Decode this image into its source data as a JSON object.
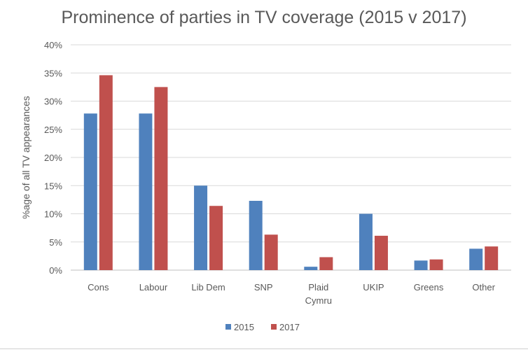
{
  "chart_data": {
    "type": "bar",
    "title": "Prominence of parties in TV coverage (2015 v 2017)",
    "ylabel": "%age of all TV appearances",
    "xlabel": "",
    "ylim": [
      0,
      40
    ],
    "yticks": [
      "0%",
      "5%",
      "10%",
      "15%",
      "20%",
      "25%",
      "30%",
      "35%",
      "40%"
    ],
    "categories": [
      [
        "Cons"
      ],
      [
        "Labour"
      ],
      [
        "Lib Dem"
      ],
      [
        "SNP"
      ],
      [
        "Plaid",
        "Cymru"
      ],
      [
        "UKIP"
      ],
      [
        "Greens"
      ],
      [
        "Other"
      ]
    ],
    "series": [
      {
        "name": "2015",
        "color": "#4f81bd",
        "values": [
          27.8,
          27.8,
          15.0,
          12.3,
          0.6,
          10.0,
          1.7,
          3.8
        ]
      },
      {
        "name": "2017",
        "color": "#c0504d",
        "values": [
          34.6,
          32.5,
          11.4,
          6.3,
          2.3,
          6.1,
          1.9,
          4.2
        ]
      }
    ],
    "grid": true,
    "legend": "bottom"
  }
}
